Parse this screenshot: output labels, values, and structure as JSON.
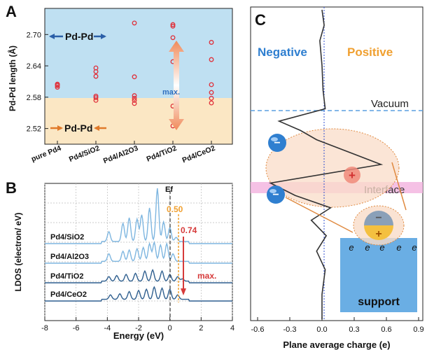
{
  "colors": {
    "blue_bg": "#bfe0f2",
    "orange_bg": "#fbe7c4",
    "marker": "#e0303a",
    "arrow_blue": "#2b5fa8",
    "arrow_orange": "#e07a2a",
    "dos_dark": "#2f5f8f",
    "dos_light": "#7eb6e0",
    "line_050": "#f0a030",
    "line_074": "#d63a3a",
    "neg_text": "#2f7fd0",
    "pos_text": "#f0a030",
    "vacuum_line": "#5a9fe0",
    "interface_band": "#f3b6e0",
    "support": "#6aaee4",
    "ellipse_fill": "#f9dcc8",
    "ellipse_stroke": "#e08a40"
  },
  "panelA": {
    "letter": "A",
    "ylabel": "Pd-Pd length (Å)",
    "yticks": [
      "2.52",
      "2.58",
      "2.64",
      "2.70"
    ],
    "categories": [
      "pure Pd4",
      "Pd4/SiO2",
      "Pd4/Al2O3",
      "Pd4/TiO2",
      "Pd4/CeO2"
    ],
    "label_top": "Pd-Pd",
    "label_bottom": "Pd-Pd",
    "max_label": "max."
  },
  "panelB": {
    "letter": "B",
    "ylabel": "LDOS (electron/ eV)",
    "xlabel": "Energy (eV)",
    "xticks": [
      "-8",
      "-6",
      "-4",
      "-2",
      "0",
      "2",
      "4"
    ],
    "ef_label": "Ef",
    "annot_050": "0.50",
    "annot_074": "0.74",
    "max_label": "max.",
    "series_labels": [
      "Pd4/SiO2",
      "Pd4/Al2O3",
      "Pd4/TiO2",
      "Pd4/CeO2"
    ]
  },
  "panelC": {
    "letter": "C",
    "negative": "Negative",
    "positive": "Positive",
    "vacuum": "Vacuum",
    "interface": "Interface",
    "support": "support",
    "electron": "e",
    "minus": "−",
    "plus": "+",
    "xlabel": "Plane average charge (e)",
    "xticks": [
      "-0.6",
      "-0.3",
      "0.0",
      "0.3",
      "0.6",
      "0.9"
    ]
  },
  "chart_data": [
    {
      "type": "scatter",
      "title": "",
      "xlabel": "",
      "ylabel": "Pd-Pd length (Å)",
      "ylim": [
        2.49,
        2.75
      ],
      "categories": [
        "pure Pd4",
        "Pd4/SiO2",
        "Pd4/Al2O3",
        "Pd4/TiO2",
        "Pd4/CeO2"
      ],
      "series": [
        {
          "values": [
            [
              2.599,
              2.602,
              2.604,
              2.605
            ],
            [
              2.574,
              2.579,
              2.582,
              2.62,
              2.629,
              2.636
            ],
            [
              2.568,
              2.574,
              2.578,
              2.583,
              2.619,
              2.722
            ],
            [
              2.525,
              2.563,
              2.648,
              2.694,
              2.716,
              2.719
            ],
            [
              2.569,
              2.578,
              2.589,
              2.604,
              2.652,
              2.685
            ]
          ]
        }
      ]
    },
    {
      "type": "line",
      "title": "",
      "xlabel": "Energy (eV)",
      "ylabel": "LDOS (electron/ eV)",
      "xlim": [
        -8,
        4
      ],
      "series": [
        {
          "name": "Pd4/SiO2",
          "peaks": [
            [
              -3.9,
              0.7
            ],
            [
              -3.0,
              1.3
            ],
            [
              -2.6,
              1.7
            ],
            [
              -2.1,
              1.6
            ],
            [
              -1.8,
              1.9
            ],
            [
              -1.3,
              2.4
            ],
            [
              -0.8,
              3.8
            ],
            [
              -0.4,
              1.4
            ],
            [
              0.0,
              1.0
            ],
            [
              0.4,
              0.3
            ]
          ]
        },
        {
          "name": "Pd4/Al2O3",
          "peaks": [
            [
              -3.9,
              0.6
            ],
            [
              -3.0,
              0.8
            ],
            [
              -2.6,
              0.9
            ],
            [
              -2.1,
              1.0
            ],
            [
              -1.7,
              1.1
            ],
            [
              -1.3,
              1.4
            ],
            [
              -1.0,
              1.5
            ],
            [
              -0.6,
              1.3
            ],
            [
              -0.2,
              1.4
            ],
            [
              0.2,
              0.6
            ]
          ]
        },
        {
          "name": "Pd4/TiO2",
          "peaks": [
            [
              -3.9,
              0.4
            ],
            [
              -3.4,
              0.5
            ],
            [
              -2.8,
              0.6
            ],
            [
              -2.2,
              0.7
            ],
            [
              -1.6,
              0.9
            ],
            [
              -1.1,
              1.0
            ],
            [
              -0.5,
              0.9
            ],
            [
              0.0,
              0.6
            ],
            [
              0.5,
              0.4
            ],
            [
              0.8,
              0.2
            ]
          ]
        },
        {
          "name": "Pd4/CeO2",
          "peaks": [
            [
              -3.8,
              0.4
            ],
            [
              -3.2,
              0.5
            ],
            [
              -2.6,
              0.7
            ],
            [
              -2.0,
              0.8
            ],
            [
              -1.5,
              0.9
            ],
            [
              -1.0,
              1.1
            ],
            [
              -0.5,
              1.0
            ],
            [
              0.0,
              0.9
            ],
            [
              0.5,
              0.4
            ]
          ]
        }
      ]
    },
    {
      "type": "line",
      "title": "",
      "xlabel": "Plane average charge (e)",
      "ylabel": "",
      "xlim": [
        -0.6,
        0.9
      ],
      "series": [
        {
          "profile": [
            [
              0.0,
              0.0
            ],
            [
              0.02,
              0.05
            ],
            [
              -0.02,
              0.1
            ],
            [
              0.0,
              0.18
            ],
            [
              0.01,
              0.26
            ],
            [
              0.03,
              0.32
            ],
            [
              -0.4,
              0.36
            ],
            [
              -0.2,
              0.39
            ],
            [
              -0.05,
              0.42
            ],
            [
              0.55,
              0.5
            ],
            [
              -0.48,
              0.56
            ],
            [
              -0.25,
              0.6
            ],
            [
              0.08,
              0.64
            ],
            [
              -0.1,
              0.68
            ],
            [
              0.04,
              0.73
            ],
            [
              -0.05,
              0.78
            ],
            [
              0.03,
              0.84
            ],
            [
              0.0,
              0.92
            ],
            [
              0.0,
              1.0
            ]
          ]
        }
      ]
    }
  ]
}
